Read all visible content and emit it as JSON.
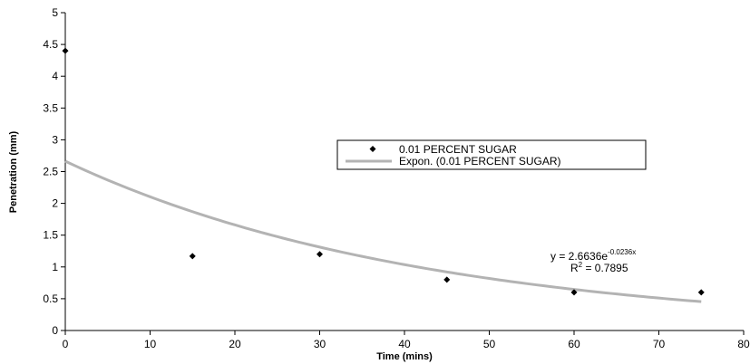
{
  "chart_data": {
    "type": "scatter",
    "title": "",
    "xlabel": "Time (mins)",
    "ylabel": "Penetration (mm)",
    "xlim": [
      0,
      80
    ],
    "ylim": [
      0,
      5
    ],
    "xticks": [
      0,
      10,
      20,
      30,
      40,
      50,
      60,
      70,
      80
    ],
    "xtick_labels": [
      "0",
      "10",
      "20",
      "30",
      "40",
      "50",
      "60",
      "70",
      "80"
    ],
    "yticks": [
      0,
      0.5,
      1,
      1.5,
      2,
      2.5,
      3,
      3.5,
      4,
      4.5,
      5
    ],
    "ytick_labels": [
      "0",
      "0.5",
      "1",
      "1.5",
      "2",
      "2.5",
      "3",
      "3.5",
      "4",
      "4.5",
      "5"
    ],
    "grid": false,
    "legend_position": "center-right",
    "series": [
      {
        "name": "0.01 PERCENT SUGAR",
        "marker": "diamond",
        "color": "#000000",
        "x": [
          0,
          15,
          30,
          45,
          60,
          75
        ],
        "y": [
          4.4,
          1.17,
          1.2,
          0.8,
          0.6,
          0.6
        ]
      }
    ],
    "trendline": {
      "name": "Expon. (0.01 PERCENT SUGAR)",
      "type": "exponential",
      "color": "#b3b3b3",
      "coefficient": 2.6636,
      "exponent": -0.0236,
      "x_range": [
        0,
        75
      ],
      "equation_prefix": "y = 2.6636e",
      "equation_exponent": "-0.0236x",
      "r2_prefix": "R",
      "r2_superscript": "2",
      "r2_suffix": " = 0.7895"
    }
  }
}
